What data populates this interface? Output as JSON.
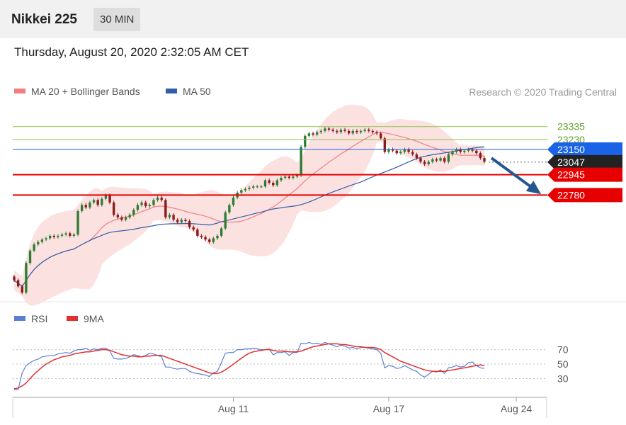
{
  "header": {
    "title": "Nikkei 225",
    "interval": "30 MIN"
  },
  "datetime": "Thursday, August 20, 2020 2:32:05 AM CET",
  "colors": {
    "ma20": "#f08080",
    "ma50": "#2f5fa8",
    "band": "#fcdcdc",
    "up": "#2e7d32",
    "down": "#8b1a1a",
    "resistance": "#8bc34a",
    "pivot": "#1a63e6",
    "support": "#e60000",
    "rsi": "#5b7fd6",
    "rsi_ma": "#e03030"
  },
  "chart_data": [
    {
      "type": "candlestick",
      "instrument": "Nikkei 225",
      "interval": "30 MIN",
      "legend": [
        {
          "label": "MA 20 + Bollinger Bands",
          "color": "#f08080"
        },
        {
          "label": "MA 50",
          "color": "#2f5fa8"
        }
      ],
      "credit": "Research © 2020 Trading Central",
      "ylim": [
        21950,
        23500
      ],
      "levels": [
        {
          "value": 23335,
          "label": "23335",
          "kind": "resistance"
        },
        {
          "value": 23230,
          "label": "23230",
          "kind": "resistance"
        },
        {
          "value": 23150,
          "label": "23150",
          "kind": "pivot"
        },
        {
          "value": 23047,
          "label": "23047",
          "kind": "last"
        },
        {
          "value": 22945,
          "label": "22945",
          "kind": "support"
        },
        {
          "value": 22780,
          "label": "22780",
          "kind": "support"
        }
      ],
      "trend_arrow": {
        "from": 23080,
        "to": 22800,
        "direction": "down"
      },
      "series": [
        {
          "name": "Price",
          "close": [
            22090,
            22040,
            21990,
            22230,
            22330,
            22380,
            22400,
            22420,
            22430,
            22450,
            22440,
            22450,
            22460,
            22470,
            22450,
            22460,
            22650,
            22700,
            22680,
            22720,
            22740,
            22700,
            22750,
            22780,
            22720,
            22620,
            22600,
            22580,
            22600,
            22620,
            22660,
            22700,
            22720,
            22690,
            22700,
            22740,
            22760,
            22740,
            22600,
            22620,
            22580,
            22560,
            22580,
            22570,
            22520,
            22500,
            22450,
            22440,
            22420,
            22400,
            22430,
            22450,
            22510,
            22640,
            22700,
            22760,
            22800,
            22820,
            22830,
            22840,
            22850,
            22850,
            22850,
            22900,
            22880,
            22860,
            22900,
            22920,
            22930,
            22920,
            22930,
            22940,
            23170,
            23260,
            23280,
            23270,
            23290,
            23300,
            23320,
            23310,
            23300,
            23290,
            23310,
            23300,
            23280,
            23300,
            23290,
            23300,
            23310,
            23300,
            23290,
            23280,
            23240,
            23130,
            23150,
            23140,
            23120,
            23130,
            23150,
            23130,
            23110,
            23080,
            23050,
            23030,
            23050,
            23070,
            23060,
            23080,
            23050,
            23110,
            23130,
            23150,
            23130,
            23140,
            23150,
            23140,
            23120,
            23080,
            23050
          ]
        }
      ]
    },
    {
      "type": "line",
      "legend": [
        {
          "label": "RSI",
          "color": "#5b7fd6"
        },
        {
          "label": "9MA",
          "color": "#e03030"
        }
      ],
      "ylim": [
        10,
        95
      ],
      "y_ticks": [
        "70",
        "50",
        "30"
      ],
      "y_tick_values": [
        70,
        50,
        30
      ],
      "x_ticks": [
        "Aug 11",
        "Aug 17",
        "Aug 24"
      ],
      "series": [
        {
          "name": "RSI",
          "values": [
            15,
            15,
            38,
            48,
            52,
            55,
            57,
            60,
            61,
            62,
            62,
            64,
            65,
            66,
            65,
            68,
            70,
            70,
            72,
            69,
            71,
            70,
            72,
            72,
            68,
            58,
            57,
            57,
            58,
            60,
            63,
            62,
            60,
            62,
            65,
            64,
            62,
            60,
            46,
            46,
            44,
            43,
            44,
            44,
            40,
            38,
            37,
            36,
            35,
            33,
            38,
            40,
            52,
            65,
            66,
            66,
            70,
            70,
            71,
            71,
            72,
            71,
            70,
            70,
            71,
            63,
            66,
            66,
            67,
            62,
            66,
            66,
            79,
            78,
            80,
            78,
            79,
            77,
            80,
            78,
            76,
            74,
            76,
            75,
            72,
            73,
            71,
            73,
            73,
            72,
            71,
            70,
            65,
            45,
            48,
            47,
            44,
            45,
            48,
            45,
            42,
            40,
            35,
            32,
            36,
            40,
            39,
            42,
            37,
            45,
            46,
            48,
            46,
            47,
            52,
            53,
            48,
            45,
            44
          ]
        },
        {
          "name": "9MA",
          "values": [
            16,
            17,
            20,
            24,
            30,
            36,
            41,
            46,
            50,
            53,
            56,
            58,
            60,
            61,
            62,
            64,
            65,
            66,
            67,
            67,
            68,
            69,
            70,
            70,
            69,
            67,
            65,
            63,
            62,
            61,
            61,
            60,
            60,
            61,
            61,
            62,
            62,
            62,
            60,
            58,
            56,
            54,
            52,
            50,
            48,
            46,
            44,
            42,
            40,
            38,
            37,
            37,
            39,
            42,
            46,
            50,
            54,
            58,
            62,
            65,
            67,
            68,
            69,
            70,
            70,
            69,
            68,
            68,
            68,
            67,
            67,
            67,
            68,
            70,
            72,
            74,
            75,
            76,
            77,
            78,
            78,
            78,
            77,
            77,
            76,
            75,
            74,
            74,
            73,
            73,
            73,
            72,
            70,
            66,
            63,
            60,
            57,
            54,
            52,
            50,
            48,
            46,
            44,
            42,
            41,
            40,
            40,
            40,
            40,
            41,
            42,
            43,
            44,
            45,
            46,
            47,
            48,
            49,
            48
          ]
        }
      ]
    }
  ]
}
